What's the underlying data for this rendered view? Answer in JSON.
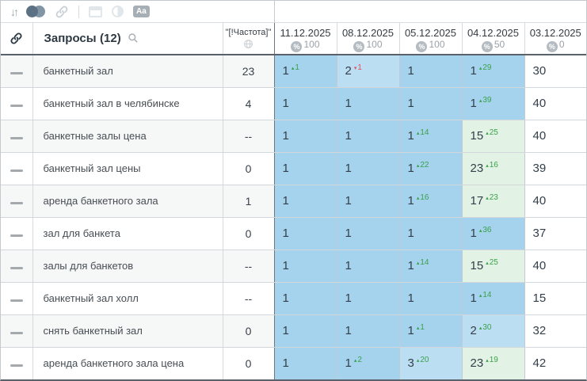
{
  "toolbar": {
    "sort_glyph": "↓↑",
    "aa_label": "Aa",
    "icons": [
      "sort-icon",
      "compare-circles-icon",
      "link-icon",
      "window-icon",
      "contrast-icon",
      "text-case-icon"
    ]
  },
  "header": {
    "queries_label": "Запросы",
    "queries_count": "(12)",
    "frequency_label": "\"[!Частота]\"",
    "percent_symbol": "%",
    "dates": [
      {
        "date": "11.12.2025",
        "percent": "100"
      },
      {
        "date": "08.12.2025",
        "percent": "100"
      },
      {
        "date": "05.12.2025",
        "percent": "100"
      },
      {
        "date": "04.12.2025",
        "percent": "50"
      },
      {
        "date": "03.12.2025",
        "percent": "0"
      }
    ]
  },
  "rows": [
    {
      "keyword": "банкетный зал",
      "frequency": "23",
      "cells": [
        {
          "v": "1",
          "chg": "1",
          "dir": "up",
          "tier": "top1"
        },
        {
          "v": "2",
          "chg": "1",
          "dir": "down",
          "tier": "top3"
        },
        {
          "v": "1",
          "tier": "top1"
        },
        {
          "v": "1",
          "chg": "29",
          "dir": "up",
          "tier": "top1"
        },
        {
          "v": "30",
          "tier": "none"
        }
      ]
    },
    {
      "keyword": "банкетный зал в челябинске",
      "frequency": "4",
      "cells": [
        {
          "v": "1",
          "tier": "top1"
        },
        {
          "v": "1",
          "tier": "top1"
        },
        {
          "v": "1",
          "tier": "top1"
        },
        {
          "v": "1",
          "chg": "39",
          "dir": "up",
          "tier": "top1"
        },
        {
          "v": "40",
          "tier": "none"
        }
      ]
    },
    {
      "keyword": "банкетные залы цена",
      "frequency": "--",
      "cells": [
        {
          "v": "1",
          "tier": "top1"
        },
        {
          "v": "1",
          "tier": "top1"
        },
        {
          "v": "1",
          "chg": "14",
          "dir": "up",
          "tier": "top1"
        },
        {
          "v": "15",
          "chg": "25",
          "dir": "up",
          "tier": "green"
        },
        {
          "v": "40",
          "tier": "none"
        }
      ]
    },
    {
      "keyword": "банкетный зал цены",
      "frequency": "0",
      "cells": [
        {
          "v": "1",
          "tier": "top1"
        },
        {
          "v": "1",
          "tier": "top1"
        },
        {
          "v": "1",
          "chg": "22",
          "dir": "up",
          "tier": "top1"
        },
        {
          "v": "23",
          "chg": "16",
          "dir": "up",
          "tier": "green"
        },
        {
          "v": "39",
          "tier": "none"
        }
      ]
    },
    {
      "keyword": "аренда банкетного зала",
      "frequency": "1",
      "cells": [
        {
          "v": "1",
          "tier": "top1"
        },
        {
          "v": "1",
          "tier": "top1"
        },
        {
          "v": "1",
          "chg": "16",
          "dir": "up",
          "tier": "top1"
        },
        {
          "v": "17",
          "chg": "23",
          "dir": "up",
          "tier": "green"
        },
        {
          "v": "40",
          "tier": "none"
        }
      ]
    },
    {
      "keyword": "зал для банкета",
      "frequency": "0",
      "cells": [
        {
          "v": "1",
          "tier": "top1"
        },
        {
          "v": "1",
          "tier": "top1"
        },
        {
          "v": "1",
          "tier": "top1"
        },
        {
          "v": "1",
          "chg": "36",
          "dir": "up",
          "tier": "top1"
        },
        {
          "v": "37",
          "tier": "none"
        }
      ]
    },
    {
      "keyword": "залы для банкетов",
      "frequency": "--",
      "cells": [
        {
          "v": "1",
          "tier": "top1"
        },
        {
          "v": "1",
          "tier": "top1"
        },
        {
          "v": "1",
          "chg": "14",
          "dir": "up",
          "tier": "top1"
        },
        {
          "v": "15",
          "chg": "25",
          "dir": "up",
          "tier": "green"
        },
        {
          "v": "40",
          "tier": "none"
        }
      ]
    },
    {
      "keyword": "банкетный зал холл",
      "frequency": "--",
      "cells": [
        {
          "v": "1",
          "tier": "top1"
        },
        {
          "v": "1",
          "tier": "top1"
        },
        {
          "v": "1",
          "tier": "top1"
        },
        {
          "v": "1",
          "chg": "14",
          "dir": "up",
          "tier": "top1"
        },
        {
          "v": "15",
          "tier": "none"
        }
      ]
    },
    {
      "keyword": "снять банкетный зал",
      "frequency": "0",
      "cells": [
        {
          "v": "1",
          "tier": "top1"
        },
        {
          "v": "1",
          "tier": "top1"
        },
        {
          "v": "1",
          "chg": "1",
          "dir": "up",
          "tier": "top1"
        },
        {
          "v": "2",
          "chg": "30",
          "dir": "up",
          "tier": "top3"
        },
        {
          "v": "32",
          "tier": "none"
        }
      ]
    },
    {
      "keyword": "аренда банкетного зала цена",
      "frequency": "0",
      "cells": [
        {
          "v": "1",
          "tier": "top1"
        },
        {
          "v": "1",
          "chg": "2",
          "dir": "up",
          "tier": "top1"
        },
        {
          "v": "3",
          "chg": "20",
          "dir": "up",
          "tier": "top3"
        },
        {
          "v": "23",
          "chg": "19",
          "dir": "up",
          "tier": "green"
        },
        {
          "v": "42",
          "tier": "none"
        }
      ]
    }
  ],
  "glyphs": {
    "up": "▴",
    "down": "▾"
  },
  "colors": {
    "tier_top1": "#a5d3ee",
    "tier_top3": "#bcdef3",
    "tier_green": "#e2f3e5",
    "tier_none": "#ffffff",
    "change_up": "#3ba14b",
    "change_down": "#e25060",
    "header_separator": "#59626b"
  }
}
